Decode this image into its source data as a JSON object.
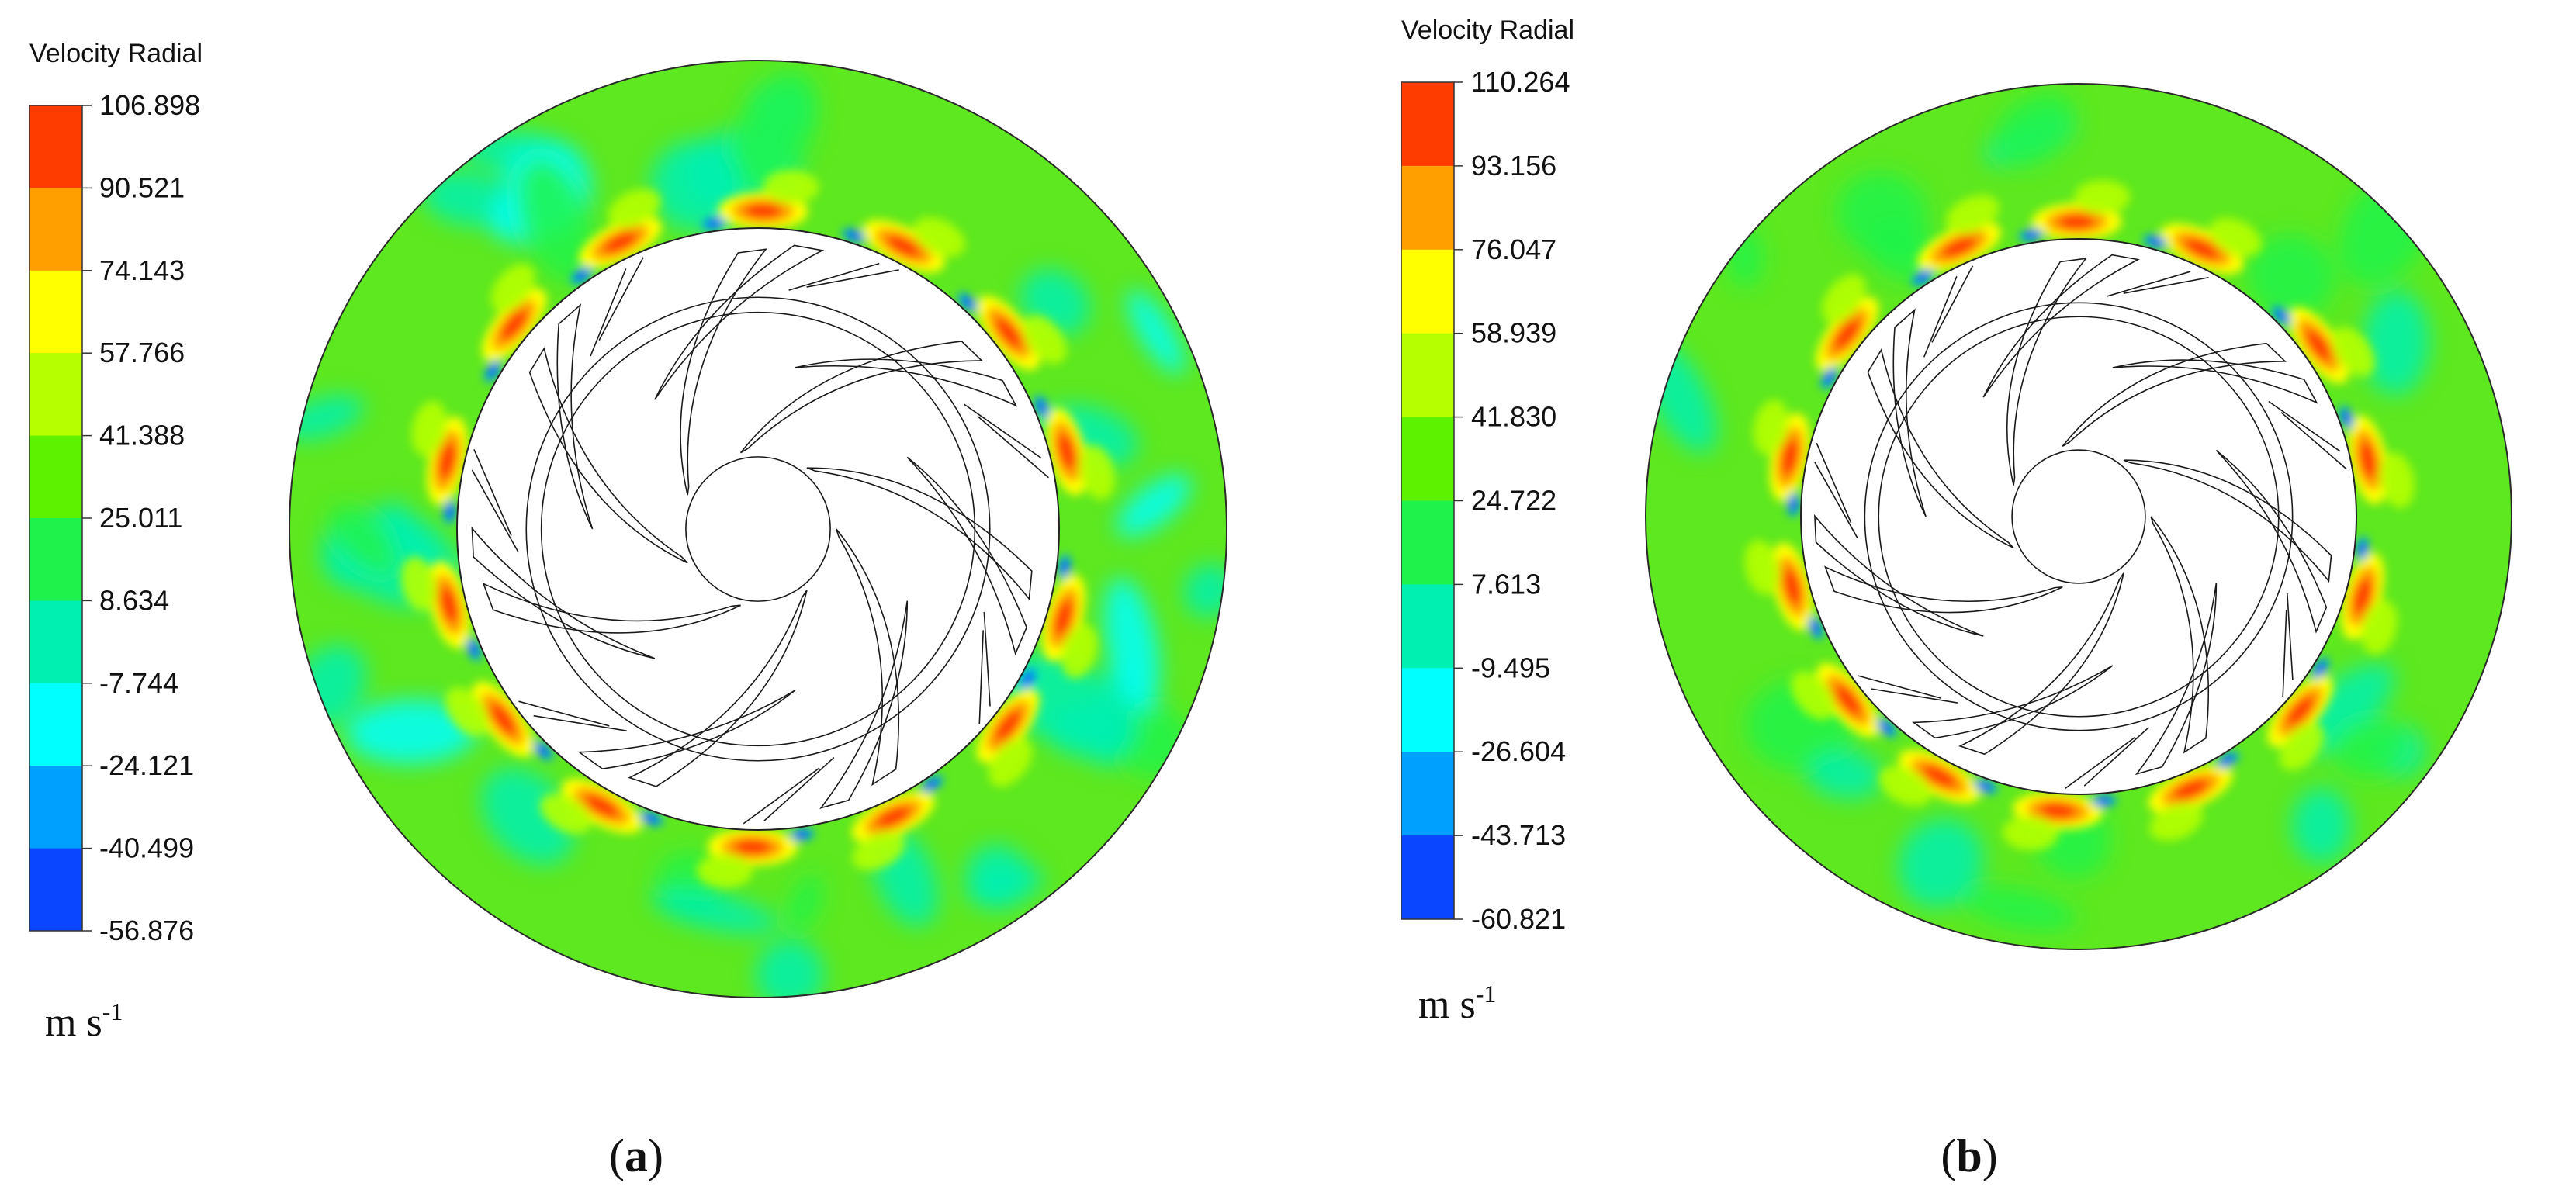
{
  "panels": [
    {
      "id": "a",
      "legend_title": "Velocity Radial",
      "levels": [
        "106.898",
        "90.521",
        "74.143",
        "57.766",
        "41.388",
        "25.011",
        "8.634",
        "-7.744",
        "-24.121",
        "-40.499",
        "-56.876"
      ],
      "unit_base": "m s",
      "unit_exp": "-1",
      "caption_open": "(",
      "caption_letter": "a",
      "caption_close": ")"
    },
    {
      "id": "b",
      "legend_title": "Velocity Radial",
      "levels": [
        "110.264",
        "93.156",
        "76.047",
        "58.939",
        "41.830",
        "24.722",
        "7.613",
        "-9.495",
        "-26.604",
        "-43.713",
        "-60.821"
      ],
      "unit_base": "m s",
      "unit_exp": "-1",
      "caption_open": "(",
      "caption_letter": "b",
      "caption_close": ")"
    }
  ],
  "colors": {
    "colormap": [
      "#ff3c00",
      "#ff9f00",
      "#ffff00",
      "#b6ff00",
      "#5cf200",
      "#1ff34b",
      "#00f0b1",
      "#00ffff",
      "#00a0ff",
      "#0a46ff"
    ],
    "background_field": "#5ee81f",
    "hub": "#ffffff",
    "blade_line": "#1a1a1a"
  }
}
